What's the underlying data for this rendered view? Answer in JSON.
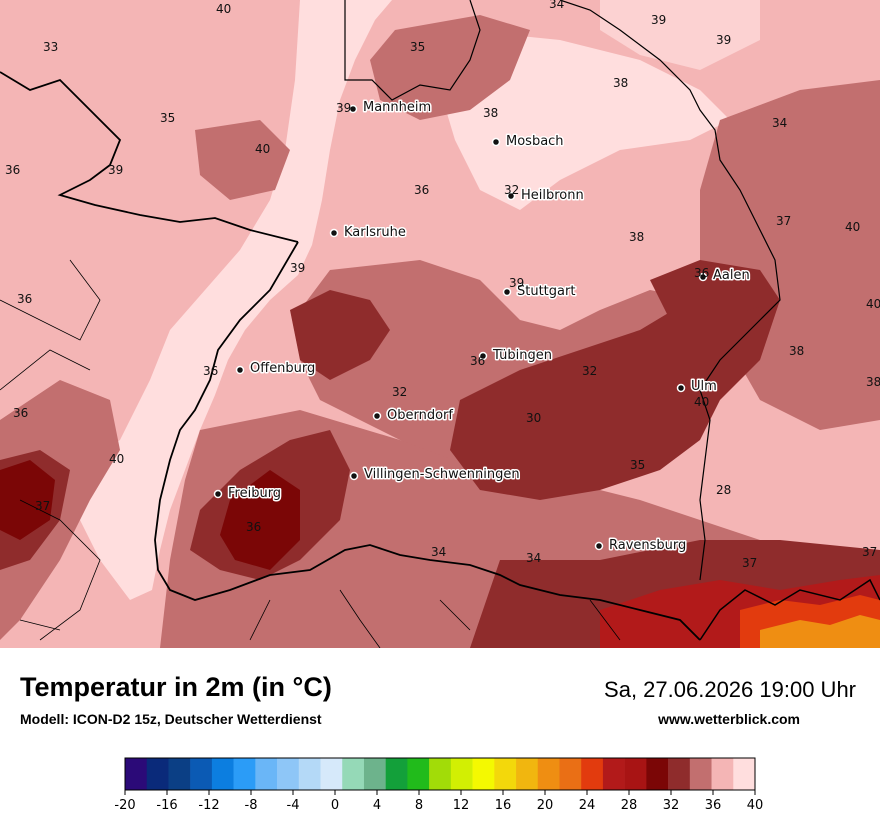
{
  "title": "Temperatur in 2m (in °C)",
  "subtitle": "Modell: ICON-D2 15z, Deutscher Wetterdienst",
  "datetime": "Sa, 27.06.2026 19:00 Uhr",
  "website": "www.wetterblick.com",
  "cities": [
    {
      "name": "Mannheim"
    },
    {
      "name": "Mosbach"
    },
    {
      "name": "Heilbronn"
    },
    {
      "name": "Karlsruhe"
    },
    {
      "name": "Stuttgart"
    },
    {
      "name": "Aalen"
    },
    {
      "name": "Tübingen"
    },
    {
      "name": "Offenburg"
    },
    {
      "name": "Ulm"
    },
    {
      "name": "Oberndorf"
    },
    {
      "name": "Villingen-Schwenningen"
    },
    {
      "name": "Freiburg"
    },
    {
      "name": "Ravensburg"
    }
  ],
  "temperature_labels": [
    "40",
    "34",
    "39",
    "39",
    "33",
    "35",
    "38",
    "39",
    "35",
    "38",
    "34",
    "40",
    "36",
    "39",
    "36",
    "32",
    "37",
    "40",
    "38",
    "39",
    "39",
    "36",
    "36",
    "40",
    "38",
    "36",
    "32",
    "36",
    "38",
    "32",
    "40",
    "36",
    "30",
    "40",
    "35",
    "28",
    "37",
    "36",
    "34",
    "34",
    "37",
    "37"
  ],
  "legend": {
    "colors": [
      "#2b0a78",
      "#0a2a7a",
      "#0b3f85",
      "#0b5ab4",
      "#0c7ee0",
      "#2b9cf7",
      "#6ab6f7",
      "#8ec6f7",
      "#b4d9f7",
      "#d6e9fa",
      "#95d9b7",
      "#6db38c",
      "#13a03a",
      "#21bb1b",
      "#a2dc08",
      "#d2ef03",
      "#f4f901",
      "#f3d80b",
      "#f1b60f",
      "#ef8e12",
      "#ea6f15",
      "#e23b0e",
      "#b21a1a",
      "#a81414",
      "#7b0606",
      "#8f2c2c",
      "#c26f6f",
      "#f4b5b5",
      "#ffdede"
    ],
    "tick_labels": [
      "-20",
      "-16",
      "-12",
      "-8",
      "-4",
      "0",
      "4",
      "8",
      "12",
      "16",
      "20",
      "24",
      "28",
      "32",
      "36",
      "40"
    ]
  }
}
